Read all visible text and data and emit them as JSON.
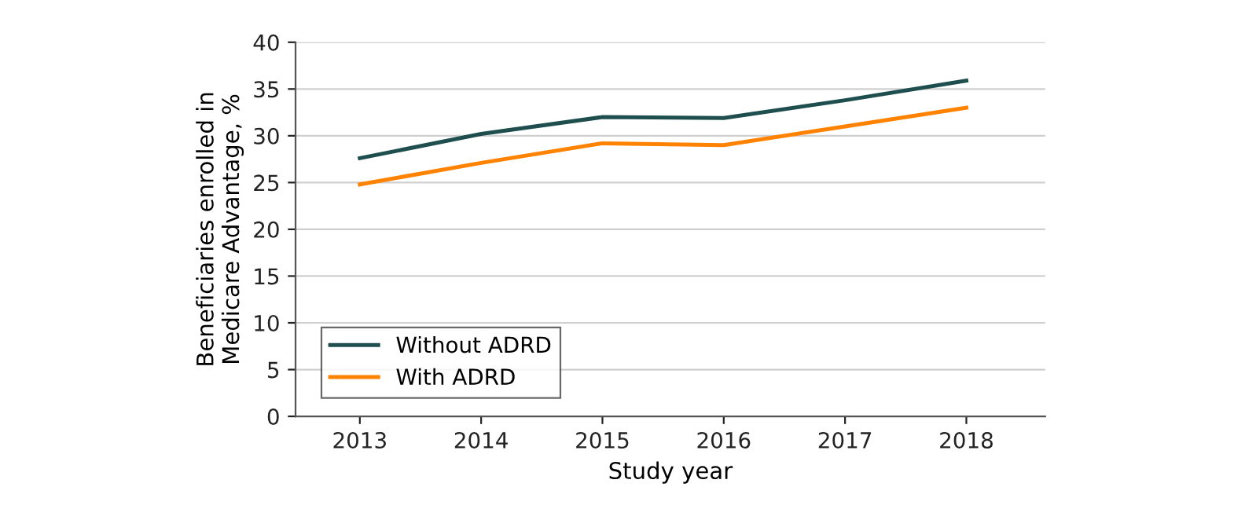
{
  "chart_data": {
    "type": "line",
    "xlabel": "Study year",
    "ylabel": "Beneficiaries enrolled in\nMedicare Advantage, %",
    "x": [
      2013,
      2014,
      2015,
      2016,
      2017,
      2018
    ],
    "series": [
      {
        "name": "Without ADRD",
        "color": "#1f4e4f",
        "values": [
          27.6,
          30.2,
          32.0,
          31.9,
          33.8,
          35.9
        ]
      },
      {
        "name": "With ADRD",
        "color": "#ff8200",
        "values": [
          24.8,
          27.1,
          29.2,
          29.0,
          31.0,
          33.0
        ]
      }
    ],
    "xlim": [
      2012.47,
      2018.65
    ],
    "xticks": [
      2013,
      2014,
      2015,
      2016,
      2017,
      2018
    ],
    "ylim": [
      0,
      40
    ],
    "yticks": [
      0,
      5,
      10,
      15,
      20,
      25,
      30,
      35,
      40
    ],
    "grid": "y",
    "legend": "bottom left",
    "marker": "none",
    "line_style": "solid"
  }
}
